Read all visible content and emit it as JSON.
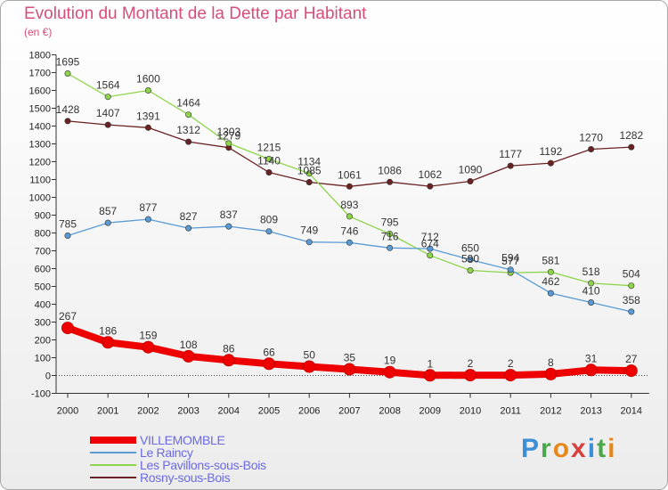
{
  "title": "Evolution du Montant de la Dette par Habitant",
  "unit": "(en €)",
  "logo": [
    "P",
    "r",
    "o",
    "x",
    "i",
    "t",
    "i"
  ],
  "logo_colors": [
    "#3a8fd6",
    "#4aa84a",
    "#e58a1a",
    "#d7403f",
    "#3a8fd6",
    "#4aa84a",
    "#e58a1a"
  ],
  "chart_data": {
    "type": "line",
    "x": [
      "2000",
      "2001",
      "2002",
      "2003",
      "2004",
      "2005",
      "2006",
      "2007",
      "2008",
      "2009",
      "2010",
      "2011",
      "2012",
      "2013",
      "2014"
    ],
    "ylim": [
      -100,
      1800
    ],
    "yticks": [
      "-100",
      "0",
      "100",
      "200",
      "300",
      "400",
      "500",
      "600",
      "700",
      "800",
      "900",
      "1000",
      "1100",
      "1200",
      "1300",
      "1400",
      "1500",
      "1600",
      "1700",
      "1800"
    ],
    "grid": false,
    "legend_position": "bottom-left",
    "series": [
      {
        "name": "VILLEMOMBLE",
        "color": "#ee0000",
        "values": [
          267,
          186,
          159,
          108,
          86,
          66,
          50,
          35,
          19,
          1,
          2,
          2,
          8,
          31,
          27
        ]
      },
      {
        "name": "Le Raincy",
        "color": "#5a9bd5",
        "values": [
          785,
          857,
          877,
          827,
          837,
          809,
          749,
          746,
          716,
          712,
          650,
          594,
          462,
          410,
          358
        ]
      },
      {
        "name": "Les Pavillons-sous-Bois",
        "color": "#8ed44b",
        "values": [
          1695,
          1564,
          1600,
          1464,
          1303,
          1215,
          1134,
          893,
          795,
          674,
          590,
          577,
          581,
          518,
          504
        ]
      },
      {
        "name": "Rosny-sous-Bois",
        "color": "#6b2222",
        "values": [
          1428,
          1407,
          1391,
          1312,
          1279,
          1140,
          1085,
          1061,
          1086,
          1062,
          1090,
          1177,
          1192,
          1270,
          1282
        ]
      }
    ],
    "labels_shown": [
      [
        "267",
        "186",
        "159",
        "108",
        "86",
        "66",
        "50",
        "35",
        "19",
        "1",
        "2",
        "2",
        "8",
        "31",
        "27"
      ],
      [
        "785",
        "857",
        "877",
        "827",
        "837",
        "809",
        "749",
        "746",
        "716",
        "712",
        "650",
        "594",
        "462",
        "410",
        "358"
      ],
      [
        "1695",
        "1564",
        "1600",
        "1464",
        "1303",
        "1215",
        "1134",
        "893",
        "795",
        "674",
        "590",
        "577",
        "581",
        "518",
        "504"
      ],
      [
        "1428",
        "1407",
        "1391",
        "1312",
        "1279",
        "1140",
        "1085",
        "1061",
        "1086",
        "1062",
        "1090",
        "1177",
        "1192",
        "1270",
        "1282"
      ]
    ]
  }
}
